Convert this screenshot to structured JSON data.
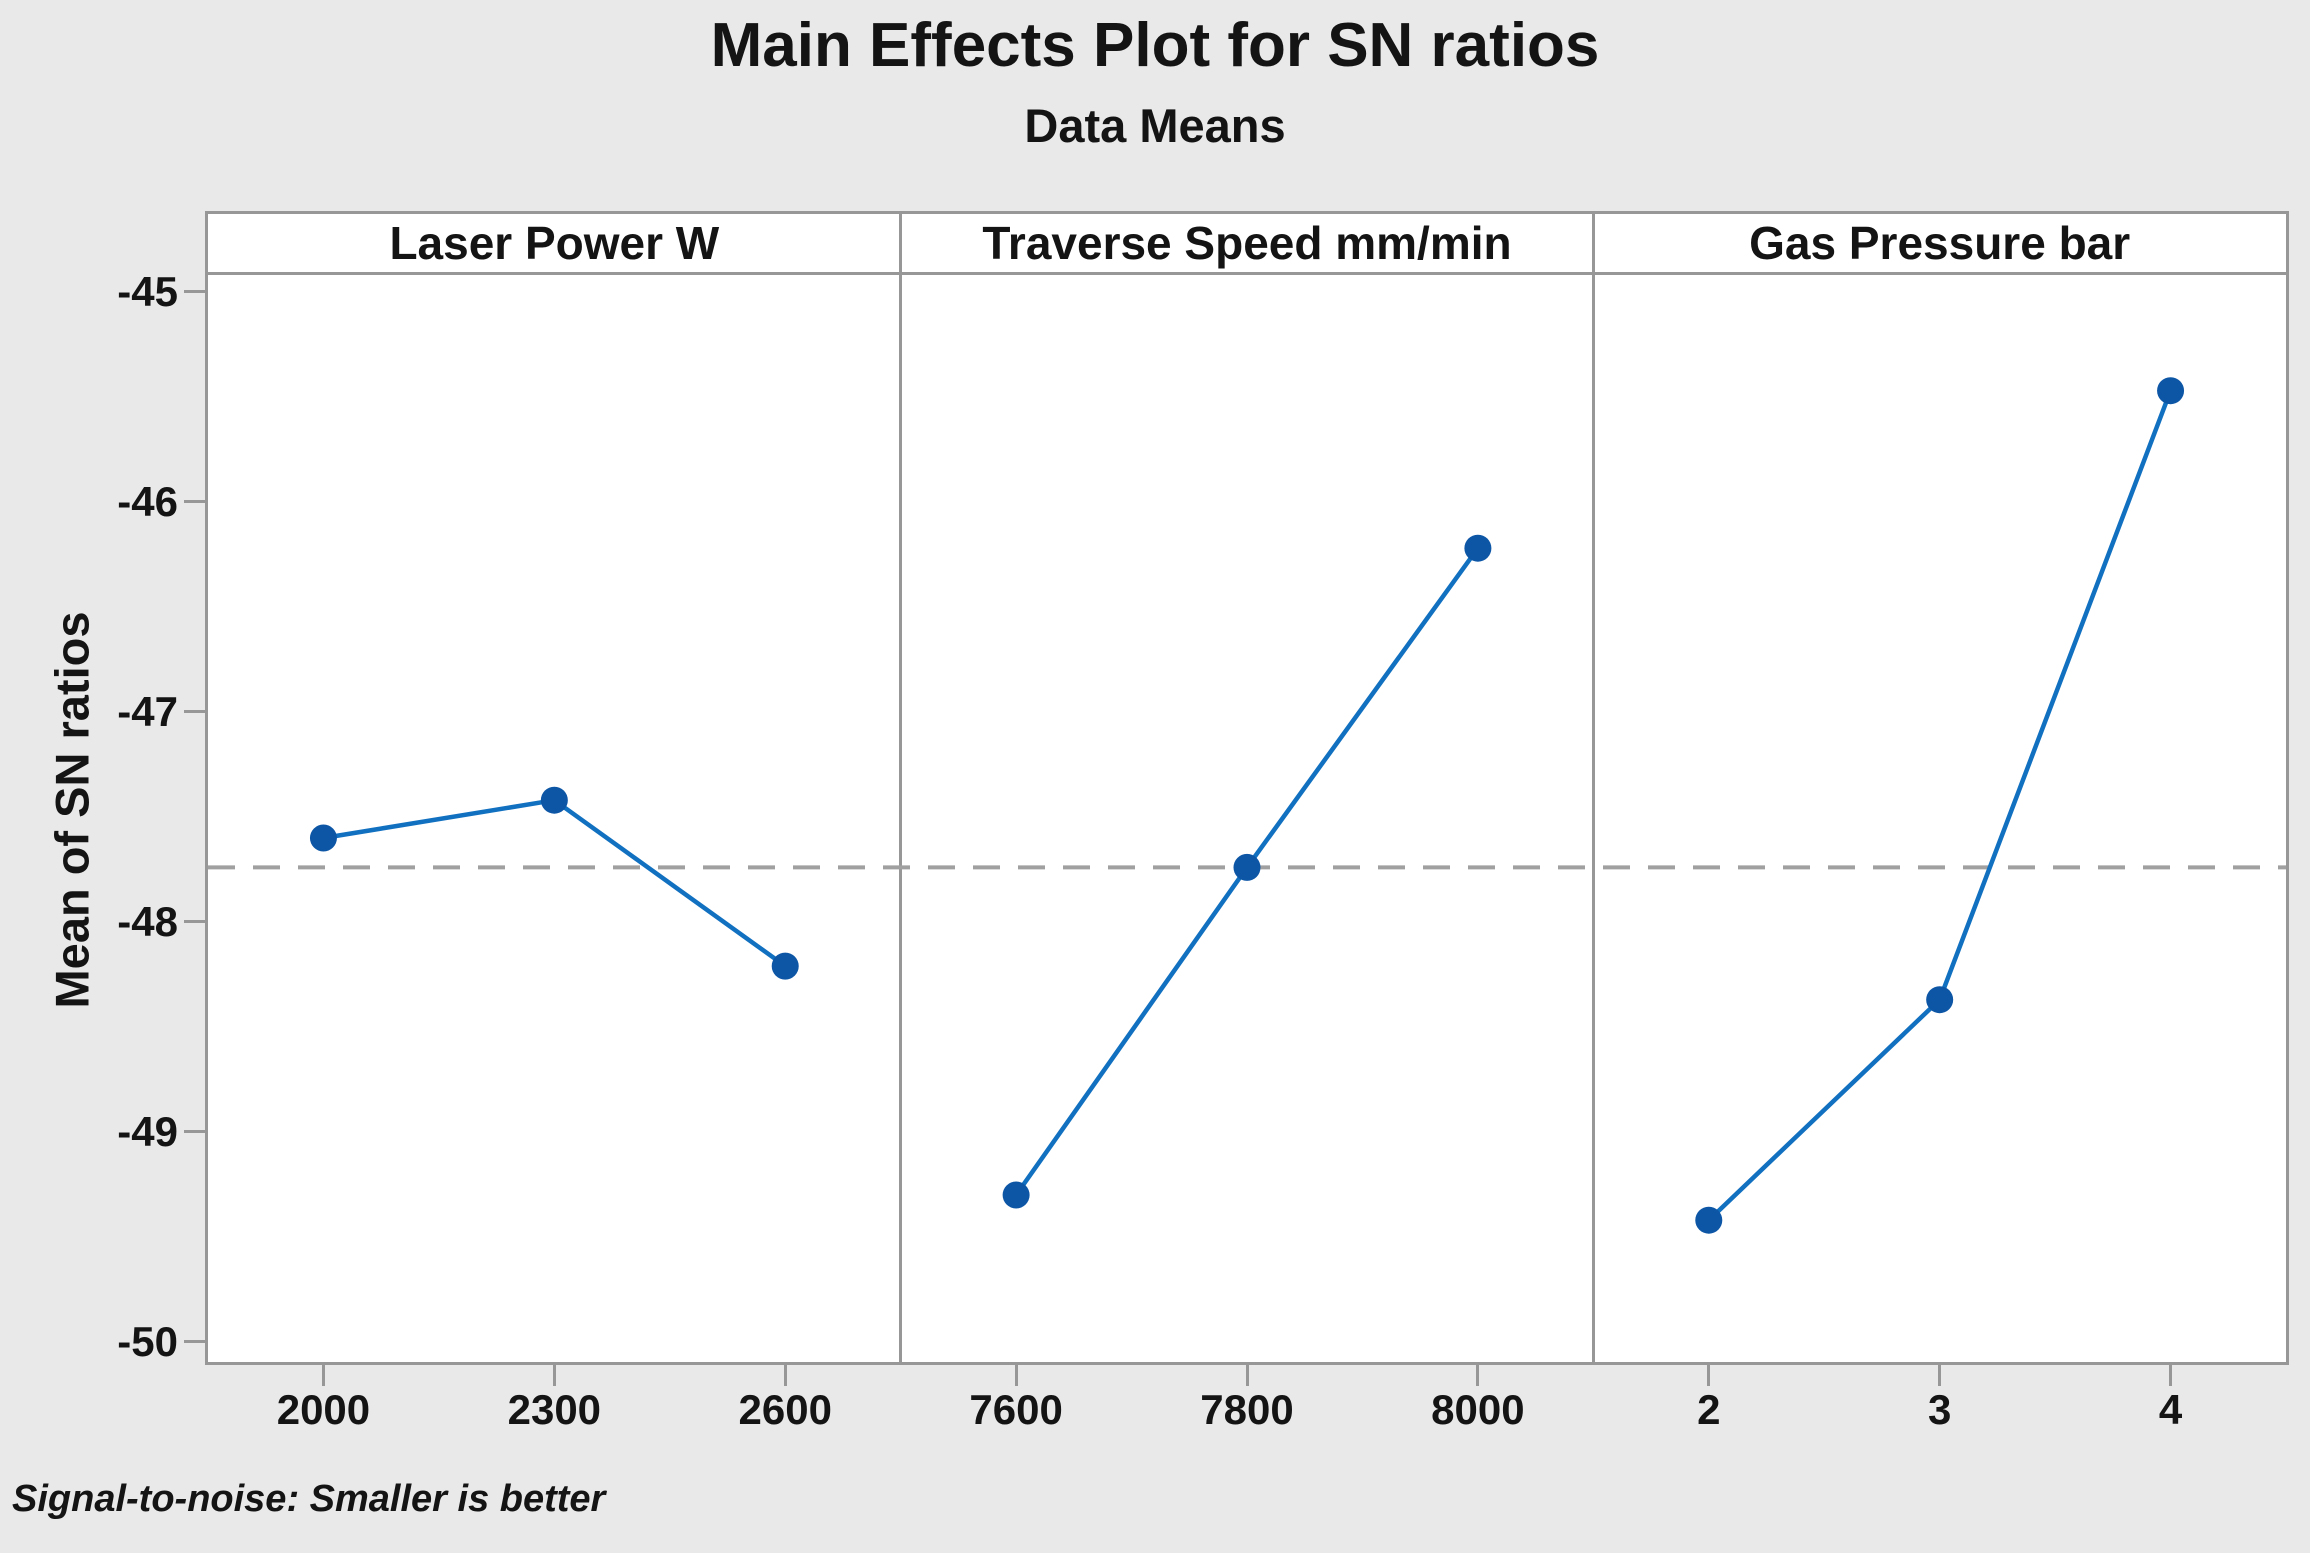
{
  "title": "Main Effects Plot for SN ratios",
  "subtitle": "Data Means",
  "footer": "Signal-to-noise: Smaller is better",
  "y_axis": {
    "label": "Mean of SN ratios",
    "tick_labels": [
      "-45",
      "-46",
      "-47",
      "-48",
      "-49",
      "-50"
    ]
  },
  "colors": {
    "background": "#e9e9e9",
    "plot_background": "#ffffff",
    "frame": "#979797",
    "line": "#1170c0",
    "marker": "#0d56a6",
    "grand_mean_line": "#a0a0a0",
    "text": "#141414"
  },
  "chart_data": {
    "type": "line",
    "title": "Main Effects Plot for SN ratios",
    "subtitle": "Data Means",
    "ylabel": "Mean of SN ratios",
    "ylim": [
      -50.1,
      -44.9
    ],
    "yticks": [
      -45,
      -46,
      -47,
      -48,
      -49,
      -50
    ],
    "grid": false,
    "legend_position": "none",
    "grand_mean": -47.74,
    "grand_mean_style": "dashed",
    "panels": [
      {
        "label": "Laser Power W",
        "categories": [
          "2000",
          "2300",
          "2600"
        ],
        "values": [
          -47.6,
          -47.42,
          -48.21
        ]
      },
      {
        "label": "Traverse Speed mm/min",
        "categories": [
          "7600",
          "7800",
          "8000"
        ],
        "values": [
          -49.3,
          -47.74,
          -46.22
        ]
      },
      {
        "label": "Gas Pressure bar",
        "categories": [
          "2",
          "3",
          "4"
        ],
        "values": [
          -49.42,
          -48.37,
          -45.47
        ]
      }
    ],
    "footnote": "Signal-to-noise: Smaller is better"
  }
}
